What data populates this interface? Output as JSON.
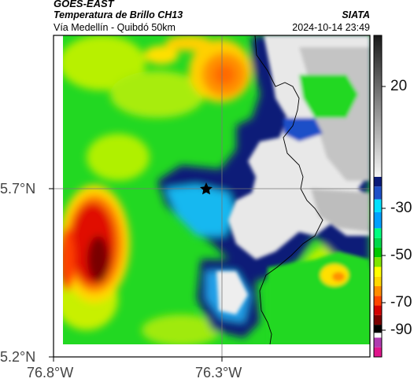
{
  "header": {
    "satellite": "GOES-EAST",
    "product": "Temperatura de Brillo CH13",
    "region": "Vía Medellín - Quibdó 50km",
    "org": "SIATA",
    "timestamp": "2024-10-14 23:49"
  },
  "axes": {
    "y_ticks": [
      "5.7°N",
      "5.2°N"
    ],
    "x_ticks": [
      "76.8°W",
      "76.3°W"
    ]
  },
  "colorbar": {
    "ticks": [
      "20",
      "-30",
      "-50",
      "-70",
      "-90"
    ],
    "colors": [
      "#e0158c",
      "#b03bb0",
      "#ffffff",
      "#000000",
      "#7a0000",
      "#d40000",
      "#ff4500",
      "#ff8c00",
      "#ffd700",
      "#ffff00",
      "#7fe600",
      "#00c800",
      "#00d84a",
      "#00ff80",
      "#00a0ff",
      "#00e0ff",
      "#1e50c8",
      "#0a1a78",
      "#404040",
      "#f0f0f0"
    ]
  },
  "map": {
    "marker": "star-marker",
    "palette": {
      "deep_blue": "#0a1a78",
      "cyan": "#18c8f0",
      "green": "#20d820",
      "yellow": "#ffe800",
      "red": "#e01000",
      "dark_red": "#7a0000",
      "cloud_white": "#f2f2f2",
      "cloud_grey": "#c0c0c0"
    }
  }
}
